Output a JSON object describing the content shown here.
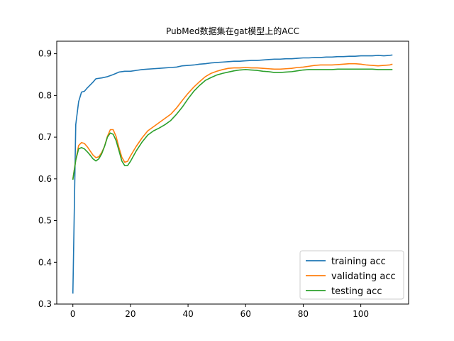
{
  "chart_data": {
    "type": "line",
    "title": "PubMed数据集在gat模型上的ACC",
    "xlabel": "",
    "ylabel": "",
    "xlim": [
      -5.6,
      116.6
    ],
    "ylim": [
      0.3,
      0.93
    ],
    "xticks": [
      "0",
      "20",
      "40",
      "60",
      "80",
      "100"
    ],
    "yticks": [
      "0.3",
      "0.4",
      "0.5",
      "0.6",
      "0.7",
      "0.8",
      "0.9"
    ],
    "grid": false,
    "legend_position": "lower-right",
    "series": [
      {
        "name": "training acc",
        "color": "#1f77b4",
        "points": [
          [
            0,
            0.325
          ],
          [
            1,
            0.73
          ],
          [
            2,
            0.785
          ],
          [
            3,
            0.808
          ],
          [
            4,
            0.81
          ],
          [
            5,
            0.818
          ],
          [
            6,
            0.825
          ],
          [
            7,
            0.832
          ],
          [
            8,
            0.84
          ],
          [
            9,
            0.841
          ],
          [
            10,
            0.842
          ],
          [
            12,
            0.845
          ],
          [
            14,
            0.85
          ],
          [
            16,
            0.856
          ],
          [
            18,
            0.858
          ],
          [
            20,
            0.858
          ],
          [
            22,
            0.86
          ],
          [
            24,
            0.862
          ],
          [
            26,
            0.863
          ],
          [
            28,
            0.864
          ],
          [
            30,
            0.865
          ],
          [
            32,
            0.866
          ],
          [
            34,
            0.867
          ],
          [
            36,
            0.868
          ],
          [
            38,
            0.871
          ],
          [
            40,
            0.872
          ],
          [
            42,
            0.873
          ],
          [
            44,
            0.875
          ],
          [
            46,
            0.876
          ],
          [
            48,
            0.878
          ],
          [
            50,
            0.879
          ],
          [
            52,
            0.88
          ],
          [
            54,
            0.881
          ],
          [
            56,
            0.882
          ],
          [
            58,
            0.882
          ],
          [
            60,
            0.883
          ],
          [
            62,
            0.884
          ],
          [
            64,
            0.884
          ],
          [
            66,
            0.885
          ],
          [
            68,
            0.886
          ],
          [
            70,
            0.887
          ],
          [
            72,
            0.887
          ],
          [
            74,
            0.888
          ],
          [
            76,
            0.888
          ],
          [
            78,
            0.889
          ],
          [
            80,
            0.89
          ],
          [
            82,
            0.89
          ],
          [
            84,
            0.891
          ],
          [
            86,
            0.891
          ],
          [
            88,
            0.892
          ],
          [
            90,
            0.892
          ],
          [
            92,
            0.893
          ],
          [
            94,
            0.893
          ],
          [
            96,
            0.894
          ],
          [
            98,
            0.894
          ],
          [
            100,
            0.895
          ],
          [
            102,
            0.895
          ],
          [
            104,
            0.895
          ],
          [
            106,
            0.896
          ],
          [
            108,
            0.895
          ],
          [
            110,
            0.896
          ],
          [
            111,
            0.897
          ]
        ]
      },
      {
        "name": "validating acc",
        "color": "#ff7f0e",
        "points": [
          [
            0,
            0.6
          ],
          [
            1,
            0.645
          ],
          [
            2,
            0.68
          ],
          [
            3,
            0.687
          ],
          [
            4,
            0.685
          ],
          [
            5,
            0.677
          ],
          [
            6,
            0.667
          ],
          [
            7,
            0.657
          ],
          [
            8,
            0.651
          ],
          [
            9,
            0.653
          ],
          [
            10,
            0.663
          ],
          [
            11,
            0.678
          ],
          [
            12,
            0.702
          ],
          [
            13,
            0.718
          ],
          [
            14,
            0.718
          ],
          [
            15,
            0.702
          ],
          [
            16,
            0.675
          ],
          [
            17,
            0.652
          ],
          [
            18,
            0.64
          ],
          [
            19,
            0.642
          ],
          [
            20,
            0.655
          ],
          [
            22,
            0.678
          ],
          [
            24,
            0.698
          ],
          [
            26,
            0.715
          ],
          [
            28,
            0.725
          ],
          [
            30,
            0.735
          ],
          [
            32,
            0.745
          ],
          [
            34,
            0.755
          ],
          [
            36,
            0.77
          ],
          [
            38,
            0.788
          ],
          [
            40,
            0.805
          ],
          [
            42,
            0.82
          ],
          [
            44,
            0.833
          ],
          [
            46,
            0.845
          ],
          [
            48,
            0.853
          ],
          [
            50,
            0.858
          ],
          [
            52,
            0.862
          ],
          [
            54,
            0.865
          ],
          [
            56,
            0.866
          ],
          [
            58,
            0.866
          ],
          [
            60,
            0.867
          ],
          [
            62,
            0.866
          ],
          [
            64,
            0.866
          ],
          [
            66,
            0.865
          ],
          [
            68,
            0.864
          ],
          [
            70,
            0.863
          ],
          [
            72,
            0.863
          ],
          [
            74,
            0.864
          ],
          [
            76,
            0.865
          ],
          [
            78,
            0.867
          ],
          [
            80,
            0.868
          ],
          [
            82,
            0.87
          ],
          [
            84,
            0.872
          ],
          [
            86,
            0.873
          ],
          [
            88,
            0.873
          ],
          [
            90,
            0.873
          ],
          [
            92,
            0.874
          ],
          [
            94,
            0.875
          ],
          [
            96,
            0.876
          ],
          [
            98,
            0.876
          ],
          [
            100,
            0.875
          ],
          [
            102,
            0.873
          ],
          [
            104,
            0.872
          ],
          [
            106,
            0.871
          ],
          [
            108,
            0.872
          ],
          [
            110,
            0.873
          ],
          [
            111,
            0.875
          ]
        ]
      },
      {
        "name": "testing acc",
        "color": "#2ca02c",
        "points": [
          [
            0,
            0.598
          ],
          [
            1,
            0.645
          ],
          [
            2,
            0.672
          ],
          [
            3,
            0.675
          ],
          [
            4,
            0.672
          ],
          [
            5,
            0.665
          ],
          [
            6,
            0.657
          ],
          [
            7,
            0.648
          ],
          [
            8,
            0.643
          ],
          [
            9,
            0.648
          ],
          [
            10,
            0.66
          ],
          [
            11,
            0.678
          ],
          [
            12,
            0.7
          ],
          [
            13,
            0.71
          ],
          [
            14,
            0.707
          ],
          [
            15,
            0.692
          ],
          [
            16,
            0.668
          ],
          [
            17,
            0.643
          ],
          [
            18,
            0.632
          ],
          [
            19,
            0.632
          ],
          [
            20,
            0.642
          ],
          [
            22,
            0.667
          ],
          [
            24,
            0.688
          ],
          [
            26,
            0.705
          ],
          [
            28,
            0.715
          ],
          [
            30,
            0.722
          ],
          [
            32,
            0.73
          ],
          [
            34,
            0.74
          ],
          [
            36,
            0.755
          ],
          [
            38,
            0.772
          ],
          [
            40,
            0.792
          ],
          [
            42,
            0.81
          ],
          [
            44,
            0.824
          ],
          [
            46,
            0.836
          ],
          [
            48,
            0.843
          ],
          [
            50,
            0.849
          ],
          [
            52,
            0.853
          ],
          [
            54,
            0.856
          ],
          [
            56,
            0.859
          ],
          [
            58,
            0.861
          ],
          [
            60,
            0.862
          ],
          [
            62,
            0.861
          ],
          [
            64,
            0.86
          ],
          [
            66,
            0.858
          ],
          [
            68,
            0.857
          ],
          [
            70,
            0.855
          ],
          [
            72,
            0.855
          ],
          [
            74,
            0.856
          ],
          [
            76,
            0.857
          ],
          [
            78,
            0.859
          ],
          [
            80,
            0.861
          ],
          [
            82,
            0.862
          ],
          [
            84,
            0.862
          ],
          [
            86,
            0.862
          ],
          [
            88,
            0.862
          ],
          [
            90,
            0.862
          ],
          [
            92,
            0.863
          ],
          [
            94,
            0.863
          ],
          [
            96,
            0.863
          ],
          [
            98,
            0.863
          ],
          [
            100,
            0.863
          ],
          [
            102,
            0.863
          ],
          [
            104,
            0.863
          ],
          [
            106,
            0.862
          ],
          [
            108,
            0.862
          ],
          [
            110,
            0.862
          ],
          [
            111,
            0.862
          ]
        ]
      }
    ]
  }
}
